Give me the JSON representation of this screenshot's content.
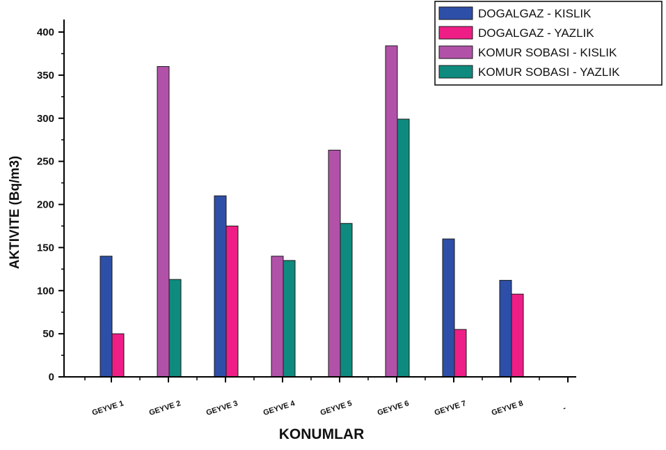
{
  "chart_data": {
    "type": "bar",
    "xlabel": "KONUMLAR",
    "ylabel": "AKTIVITE (Bq/m3)",
    "categories": [
      "GEYVE 1",
      "GEYVE 2",
      "GEYVE 3",
      "GEYVE 4",
      "GEYVE 5",
      "GEYVE 6",
      "GEYVE 7",
      "GEYVE 8",
      "-"
    ],
    "ylim": [
      0,
      420
    ],
    "yticks": [
      0,
      50,
      100,
      150,
      200,
      250,
      300,
      350,
      400
    ],
    "legend_position": "top-right",
    "grid": false,
    "series": [
      {
        "name": "DOGALGAZ - KISLIK",
        "color": "#2e4fa8",
        "values": [
          140,
          null,
          210,
          null,
          null,
          null,
          160,
          112,
          null
        ]
      },
      {
        "name": "DOGALGAZ - YAZLIK",
        "color": "#ee1e86",
        "values": [
          50,
          null,
          175,
          null,
          null,
          null,
          55,
          96,
          null
        ]
      },
      {
        "name": "KOMUR SOBASI - KISLIK",
        "color": "#b152a8",
        "values": [
          null,
          360,
          null,
          140,
          263,
          384,
          null,
          null,
          null
        ]
      },
      {
        "name": "KOMUR SOBASI - YAZLIK",
        "color": "#0e8b7e",
        "values": [
          null,
          113,
          null,
          135,
          178,
          299,
          null,
          null,
          null
        ]
      }
    ]
  }
}
